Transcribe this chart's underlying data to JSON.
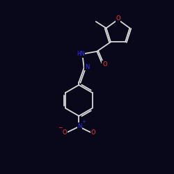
{
  "background_color": "#08081a",
  "bond_color": "#d8d8d8",
  "atom_colors": {
    "O": "#ff3333",
    "N": "#3333ff",
    "C": "#d8d8d8"
  },
  "figsize": [
    2.5,
    2.5
  ],
  "dpi": 100,
  "xlim": [
    0,
    10
  ],
  "ylim": [
    0,
    10
  ]
}
